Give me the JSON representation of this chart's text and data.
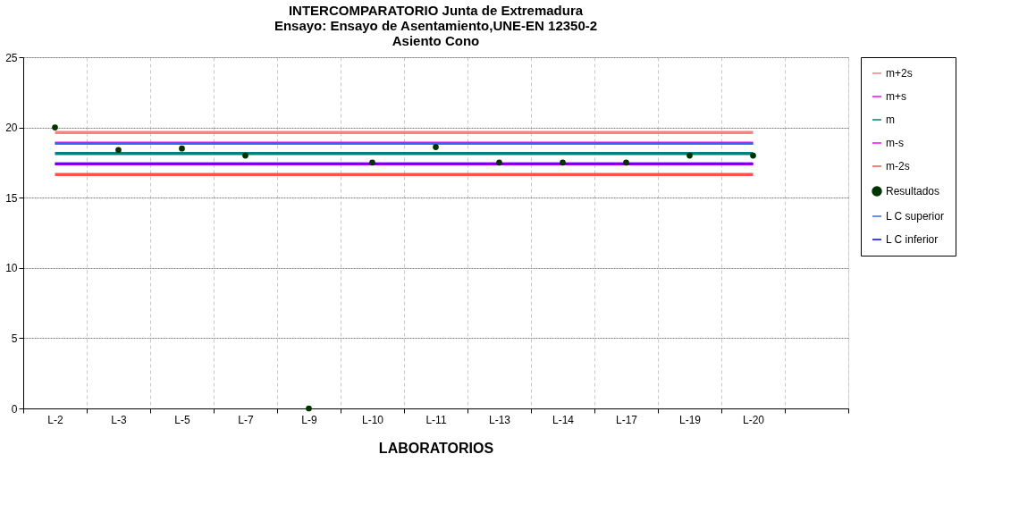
{
  "chart_data": {
    "type": "scatter",
    "title": "INTERCOMPARATORIO Junta de Extremadura\nEnsayo: Ensayo de  Asentamiento,UNE-EN 12350-2\nAsiento Cono",
    "xlabel": "LABORATORIOS",
    "categories": [
      "L-2",
      "L-3",
      "L-5",
      "L-7",
      "L-9",
      "L-10",
      "L-11",
      "L-13",
      "L-14",
      "L-17",
      "L-19",
      "L-20",
      null
    ],
    "ylim": [
      0,
      25
    ],
    "yticks": [
      0,
      5,
      10,
      15,
      20,
      25
    ],
    "grid": true,
    "legend": "right",
    "series": [
      {
        "name": "m+2s",
        "type": "line",
        "color": "#ff8080",
        "values": [
          19.64,
          19.64,
          19.64,
          19.64,
          19.64,
          19.64,
          19.64,
          19.64,
          19.64,
          19.64,
          19.64,
          19.64,
          null
        ]
      },
      {
        "name": "m+s",
        "type": "line",
        "color": "#ff00ff",
        "values": [
          18.88,
          18.88,
          18.88,
          18.88,
          18.88,
          18.88,
          18.88,
          18.88,
          18.88,
          18.88,
          18.88,
          18.88,
          null
        ]
      },
      {
        "name": "m",
        "type": "line",
        "color": "#008080",
        "values": [
          18.14,
          18.14,
          18.14,
          18.14,
          18.14,
          18.14,
          18.14,
          18.14,
          18.14,
          18.14,
          18.14,
          18.14,
          null
        ]
      },
      {
        "name": "m-s",
        "type": "line",
        "color": "#ff00ff",
        "values": [
          17.41,
          17.41,
          17.41,
          17.41,
          17.41,
          17.41,
          17.41,
          17.41,
          17.41,
          17.41,
          17.41,
          17.41,
          null
        ]
      },
      {
        "name": "m-2s",
        "type": "line",
        "color": "#ff5050",
        "values": [
          16.65,
          16.65,
          16.65,
          16.65,
          16.65,
          16.65,
          16.65,
          16.65,
          16.65,
          16.65,
          16.65,
          16.65,
          null
        ]
      },
      {
        "name": "Resultados",
        "color": "#003300",
        "values": [
          20,
          18.4,
          18.5,
          18.0,
          0,
          17.5,
          18.6,
          17.5,
          17.5,
          17.5,
          18.0,
          18.0,
          null
        ]
      },
      {
        "name": "L C superior",
        "type": "line",
        "color": "#3366ff",
        "values": [
          18.88,
          18.88,
          18.88,
          18.88,
          18.88,
          18.88,
          18.88,
          18.88,
          18.88,
          18.88,
          18.88,
          18.88,
          null
        ]
      },
      {
        "name": "L C inferior",
        "type": "line",
        "color": "#0000ff",
        "values": [
          17.41,
          17.41,
          17.41,
          17.41,
          17.41,
          17.41,
          17.41,
          17.41,
          17.41,
          17.41,
          17.41,
          17.41,
          null
        ]
      }
    ]
  }
}
